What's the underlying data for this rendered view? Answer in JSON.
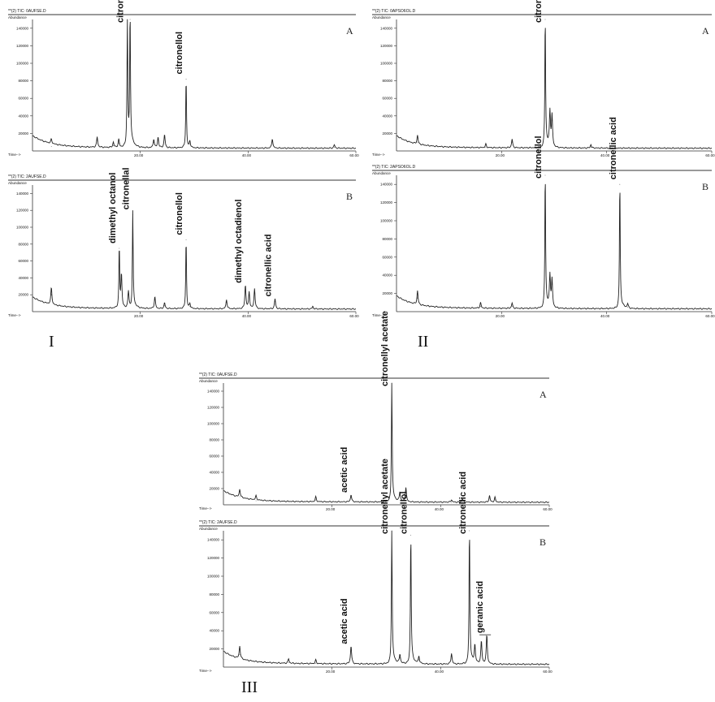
{
  "figure": {
    "group_labels": [
      "I",
      "II",
      "III"
    ],
    "colors": {
      "trace": "#222222",
      "axis": "#333333",
      "text": "#111111",
      "panel_letter": "#222222"
    }
  },
  "chart_data": [
    {
      "group": "I",
      "panel": "A",
      "type": "line",
      "header": "**(2) TIC: 0AUFSE.D",
      "y_axis_title": "Abundance",
      "x_axis_title": "Time-->",
      "xlim": [
        0,
        60
      ],
      "ylim": [
        0,
        150000
      ],
      "yticks": [
        "140000",
        "120000",
        "100000",
        "80000",
        "60000",
        "40000",
        "20000"
      ],
      "xticks": [
        {
          "x": 20,
          "label": "20.00"
        },
        {
          "x": 40,
          "label": "40.00"
        },
        {
          "x": 60,
          "label": "60.00"
        }
      ],
      "peaks": [
        {
          "x": 3.5,
          "y": 5000
        },
        {
          "x": 12,
          "y": 12000
        },
        {
          "x": 15,
          "y": 6000
        },
        {
          "x": 16,
          "y": 9000
        },
        {
          "x": 17.6,
          "y": 150000,
          "label": "citronellal"
        },
        {
          "x": 18.1,
          "y": 150000
        },
        {
          "x": 22.5,
          "y": 10000
        },
        {
          "x": 23.3,
          "y": 12000
        },
        {
          "x": 24.5,
          "y": 15000
        },
        {
          "x": 28.5,
          "y": 82000,
          "label": "citronellol"
        },
        {
          "x": 29.2,
          "y": 8000
        },
        {
          "x": 44.5,
          "y": 11000
        },
        {
          "x": 56,
          "y": 4000
        }
      ]
    },
    {
      "group": "I",
      "panel": "B",
      "type": "line",
      "header": "**(2) TIC: 2AUFSE.D",
      "y_axis_title": "Abundance",
      "x_axis_title": "Time-->",
      "xlim": [
        0,
        60
      ],
      "ylim": [
        0,
        150000
      ],
      "yticks": [
        "140000",
        "120000",
        "100000",
        "80000",
        "60000",
        "40000",
        "20000"
      ],
      "xticks": [
        {
          "x": 20,
          "label": "20.00"
        },
        {
          "x": 40,
          "label": "40.00"
        },
        {
          "x": 60,
          "label": "60.00"
        }
      ],
      "peaks": [
        {
          "x": 3.5,
          "y": 20000
        },
        {
          "x": 16.1,
          "y": 75000,
          "label": "dimethyl octanol"
        },
        {
          "x": 16.5,
          "y": 40000
        },
        {
          "x": 17.8,
          "y": 20000
        },
        {
          "x": 18.6,
          "y": 115000,
          "label": "citronellal"
        },
        {
          "x": 22.7,
          "y": 14000
        },
        {
          "x": 24.5,
          "y": 7000
        },
        {
          "x": 28.5,
          "y": 85000,
          "label": "citronellol"
        },
        {
          "x": 29.2,
          "y": 6000
        },
        {
          "x": 36,
          "y": 11000
        },
        {
          "x": 39.5,
          "y": 28000,
          "label": "dimethyl octadienol"
        },
        {
          "x": 40.2,
          "y": 20000
        },
        {
          "x": 41.2,
          "y": 24000
        },
        {
          "x": 45,
          "y": 12000,
          "label": "citronellic acid"
        },
        {
          "x": 52,
          "y": 3000
        }
      ]
    },
    {
      "group": "II",
      "panel": "A",
      "type": "line",
      "header": "**(2) TIC: 0APSO6OL.D",
      "y_axis_title": "Abundance",
      "x_axis_title": "Time-->",
      "xlim": [
        0,
        60
      ],
      "ylim": [
        0,
        150000
      ],
      "yticks": [
        "140000",
        "120000",
        "100000",
        "80000",
        "60000",
        "40000",
        "20000"
      ],
      "xticks": [
        {
          "x": 20,
          "label": "20.00"
        },
        {
          "x": 40,
          "label": "40.00"
        },
        {
          "x": 60,
          "label": "60.00"
        }
      ],
      "peaks": [
        {
          "x": 4,
          "y": 10000
        },
        {
          "x": 17,
          "y": 4000
        },
        {
          "x": 22,
          "y": 10000
        },
        {
          "x": 28.3,
          "y": 150000,
          "label": "citronellol"
        },
        {
          "x": 29.2,
          "y": 40000
        },
        {
          "x": 29.6,
          "y": 35000
        },
        {
          "x": 37,
          "y": 4000
        }
      ]
    },
    {
      "group": "II",
      "panel": "B",
      "type": "line",
      "header": "**(2) TIC: 2APSO6OL.D",
      "y_axis_title": "Abundance",
      "x_axis_title": "Time-->",
      "xlim": [
        0,
        60
      ],
      "ylim": [
        0,
        150000
      ],
      "yticks": [
        "140000",
        "120000",
        "100000",
        "80000",
        "60000",
        "40000",
        "20000"
      ],
      "xticks": [
        {
          "x": 20,
          "label": "20.00"
        },
        {
          "x": 40,
          "label": "40.00"
        },
        {
          "x": 60,
          "label": "60.00"
        }
      ],
      "peaks": [
        {
          "x": 4,
          "y": 15000
        },
        {
          "x": 16,
          "y": 6000
        },
        {
          "x": 22,
          "y": 6000
        },
        {
          "x": 28.3,
          "y": 150000,
          "label": "citronellol"
        },
        {
          "x": 29.2,
          "y": 35000
        },
        {
          "x": 29.6,
          "y": 30000
        },
        {
          "x": 42.5,
          "y": 140000,
          "label": "citronellic acid"
        },
        {
          "x": 44,
          "y": 5000
        }
      ]
    },
    {
      "group": "III",
      "panel": "A",
      "type": "line",
      "header": "**(2) TIC: 0AUFSE.D",
      "y_axis_title": "Abundance",
      "x_axis_title": "Time-->",
      "xlim": [
        0,
        60
      ],
      "ylim": [
        0,
        150000
      ],
      "yticks": [
        "140000",
        "120000",
        "100000",
        "80000",
        "60000",
        "40000",
        "20000"
      ],
      "xticks": [
        {
          "x": 20,
          "label": "20.00"
        },
        {
          "x": 40,
          "label": "40.00"
        },
        {
          "x": 60,
          "label": "60.00"
        }
      ],
      "peaks": [
        {
          "x": 3,
          "y": 10000
        },
        {
          "x": 6,
          "y": 5000
        },
        {
          "x": 17,
          "y": 6000
        },
        {
          "x": 23.5,
          "y": 9000,
          "label": "acetic acid"
        },
        {
          "x": 31,
          "y": 150000,
          "label": "citronellyl acetate"
        },
        {
          "x": 32.5,
          "y": 12000
        },
        {
          "x": 33.6,
          "y": 18000
        },
        {
          "x": 42,
          "y": 3000
        },
        {
          "x": 44,
          "y": 4000
        },
        {
          "x": 49,
          "y": 8000
        },
        {
          "x": 50,
          "y": 6000
        }
      ]
    },
    {
      "group": "III",
      "panel": "B",
      "type": "line",
      "header": "**(2) TIC: 2AUFSE.D",
      "y_axis_title": "Abundance",
      "x_axis_title": "Time-->",
      "xlim": [
        0,
        60
      ],
      "ylim": [
        0,
        150000
      ],
      "yticks": [
        "140000",
        "120000",
        "100000",
        "80000",
        "60000",
        "40000",
        "20000"
      ],
      "xticks": [
        {
          "x": 20,
          "label": "20.00"
        },
        {
          "x": 40,
          "label": "40.00"
        },
        {
          "x": 60,
          "label": "60.00"
        }
      ],
      "peaks": [
        {
          "x": 3,
          "y": 14000
        },
        {
          "x": 12,
          "y": 5000
        },
        {
          "x": 17,
          "y": 4000
        },
        {
          "x": 23.5,
          "y": 20000,
          "label": "acetic acid"
        },
        {
          "x": 31,
          "y": 150000,
          "label": "citronellyl acetate"
        },
        {
          "x": 32.5,
          "y": 10000
        },
        {
          "x": 34.5,
          "y": 145000,
          "label": "citronellol"
        },
        {
          "x": 36,
          "y": 8000
        },
        {
          "x": 42,
          "y": 12000
        },
        {
          "x": 45.3,
          "y": 150000,
          "label": "citronellic acid"
        },
        {
          "x": 46.3,
          "y": 20000
        },
        {
          "x": 47.5,
          "y": 25000
        },
        {
          "x": 48.5,
          "y": 32000,
          "label": "geranic acid"
        }
      ]
    }
  ]
}
